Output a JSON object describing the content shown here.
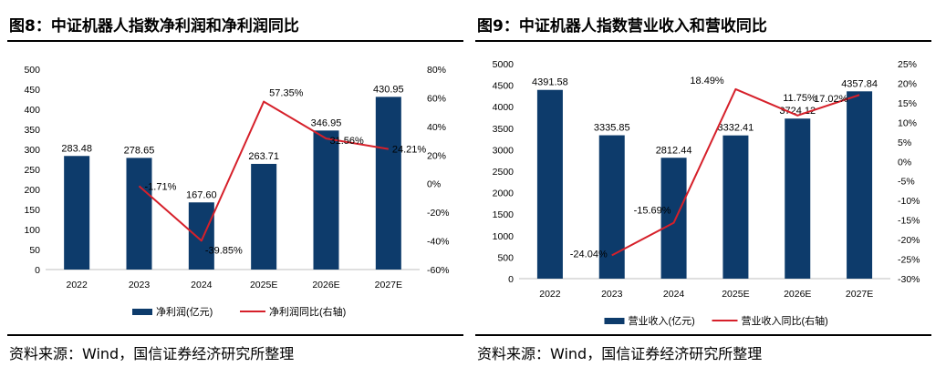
{
  "colors": {
    "bar": "#0d3b6b",
    "line": "#d6202a",
    "axis": "#bfbfbf",
    "text": "#000000"
  },
  "chart_data": [
    {
      "type": "bar",
      "title": "图8：中证机器人指数净利润和净利润同比",
      "source": "资料来源：Wind，国信证券经济研究所整理",
      "categories": [
        "2022",
        "2023",
        "2024",
        "2025E",
        "2026E",
        "2027E"
      ],
      "series": [
        {
          "name": "净利润(亿元)",
          "type": "bar",
          "axis": "left",
          "values": [
            283.48,
            278.65,
            167.6,
            263.71,
            346.95,
            430.95
          ],
          "labels": [
            "283.48",
            "278.65",
            "167.60",
            "263.71",
            "346.95",
            "430.95"
          ]
        },
        {
          "name": "净利润同比(右轴)",
          "type": "line",
          "axis": "right",
          "values": [
            null,
            -1.71,
            -39.85,
            57.35,
            31.56,
            24.21
          ],
          "labels": [
            null,
            "-1.71%",
            "-39.85%",
            "57.35%",
            "31.56%",
            "24.21%"
          ]
        }
      ],
      "yleft": {
        "min": 0,
        "max": 500,
        "step": 50,
        "ticks": [
          "0",
          "50",
          "100",
          "150",
          "200",
          "250",
          "300",
          "350",
          "400",
          "450",
          "500"
        ]
      },
      "yright": {
        "min": -60,
        "max": 80,
        "step": 20,
        "ticks": [
          "-60%",
          "-40%",
          "-20%",
          "0%",
          "20%",
          "40%",
          "60%",
          "80%"
        ]
      },
      "legend": "bottom"
    },
    {
      "type": "bar",
      "title": "图9：中证机器人指数营业收入和营收同比",
      "source": "资料来源：Wind，国信证券经济研究所整理",
      "categories": [
        "2022",
        "2023",
        "2024",
        "2025E",
        "2026E",
        "2027E"
      ],
      "series": [
        {
          "name": "营业收入(亿元)",
          "type": "bar",
          "axis": "left",
          "values": [
            4391.58,
            3335.85,
            2812.44,
            3332.41,
            3724.12,
            4357.84
          ],
          "labels": [
            "4391.58",
            "3335.85",
            "2812.44",
            "3332.41",
            "3724.12",
            "4357.84"
          ]
        },
        {
          "name": "营业收入同比(右轴)",
          "type": "line",
          "axis": "right",
          "values": [
            null,
            -24.04,
            -15.69,
            18.49,
            11.75,
            17.02
          ],
          "labels": [
            null,
            "-24.04%",
            "-15.69%",
            "18.49%",
            "11.75%",
            "17.02%"
          ]
        }
      ],
      "yleft": {
        "min": 0,
        "max": 5000,
        "step": 500,
        "ticks": [
          "0",
          "500",
          "1000",
          "1500",
          "2000",
          "2500",
          "3000",
          "3500",
          "4000",
          "4500",
          "5000"
        ]
      },
      "yright": {
        "min": -30,
        "max": 25,
        "step": 5,
        "ticks": [
          "-30%",
          "-25%",
          "-20%",
          "-15%",
          "-10%",
          "-5%",
          "0%",
          "5%",
          "10%",
          "15%",
          "20%",
          "25%"
        ]
      },
      "legend": "bottom"
    }
  ]
}
